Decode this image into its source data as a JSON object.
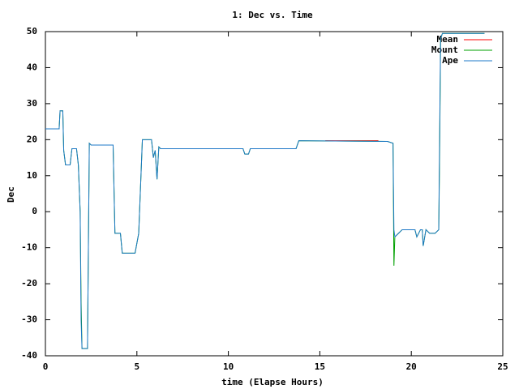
{
  "chart_data": {
    "type": "line",
    "title": "1: Dec vs. Time",
    "xlabel": "time (Elapse Hours)",
    "ylabel": "Dec",
    "xlim": [
      0,
      25
    ],
    "xticks": [
      0,
      5,
      10,
      15,
      20,
      25
    ],
    "ylim": [
      -40,
      50
    ],
    "yticks": [
      -40,
      -30,
      -20,
      -10,
      0,
      10,
      20,
      30,
      40,
      50
    ],
    "legend": "top-right",
    "grid": false,
    "series": [
      {
        "name": "Mean",
        "color": "#ff0000",
        "x": [
          15.3,
          18.2
        ],
        "values": [
          19.7,
          19.7
        ]
      },
      {
        "name": "Mount",
        "color": "#00a000",
        "x": [
          0,
          0.75,
          0.8,
          0.95,
          1.0,
          1.1,
          1.35,
          1.45,
          1.7,
          1.8,
          1.9,
          1.95,
          2.0,
          2.3,
          2.4,
          2.5,
          3.7,
          3.8,
          4.1,
          4.2,
          4.9,
          5.1,
          5.3,
          5.8,
          5.9,
          6.0,
          6.1,
          6.2,
          6.3,
          10.8,
          10.9,
          11.1,
          11.2,
          13.7,
          13.85,
          18.7,
          19.0,
          19.05,
          19.1,
          19.3,
          19.5,
          20.2,
          20.3,
          20.5,
          20.6,
          20.65,
          20.8,
          21.0,
          21.3,
          21.5,
          21.55,
          21.6,
          21.7,
          24
        ],
        "values": [
          23,
          23,
          28,
          28,
          17,
          13,
          13,
          17.5,
          17.5,
          13,
          0,
          -25,
          -38,
          -38,
          19,
          18.5,
          18.5,
          -6,
          -6,
          -11.5,
          -11.5,
          -6,
          20,
          20,
          15,
          17,
          9,
          18,
          17.5,
          17.5,
          16,
          16,
          17.5,
          17.5,
          19.7,
          19.5,
          19,
          -15,
          -7,
          -6,
          -5,
          -5,
          -7,
          -5,
          -5,
          -9.5,
          -5,
          -6,
          -6,
          -5,
          17,
          48,
          49.5,
          49.5
        ]
      },
      {
        "name": "Ape",
        "color": "#1e78c8",
        "x": [
          0,
          0.75,
          0.8,
          0.95,
          1.0,
          1.1,
          1.35,
          1.45,
          1.7,
          1.8,
          1.9,
          1.95,
          2.0,
          2.3,
          2.4,
          2.5,
          3.7,
          3.8,
          4.1,
          4.2,
          4.9,
          5.1,
          5.3,
          5.8,
          5.9,
          6.0,
          6.1,
          6.2,
          6.3,
          10.8,
          10.9,
          11.1,
          11.2,
          13.7,
          13.85,
          18.7,
          19.0,
          19.05,
          19.1,
          19.3,
          19.5,
          20.2,
          20.3,
          20.5,
          20.6,
          20.65,
          20.8,
          21.0,
          21.3,
          21.5,
          21.6,
          21.7,
          24
        ],
        "values": [
          23,
          23,
          28,
          28,
          17,
          13,
          13,
          17.5,
          17.5,
          13,
          0,
          -30,
          -38,
          -38,
          19,
          18.5,
          18.5,
          -6,
          -6,
          -11.5,
          -11.5,
          -6,
          20,
          20,
          15,
          17,
          9,
          18,
          17.5,
          17.5,
          16,
          16,
          17.5,
          17.5,
          19.7,
          19.5,
          19,
          -5,
          -7,
          -6,
          -5,
          -5,
          -7,
          -5,
          -5,
          -9.5,
          -5,
          -6,
          -6,
          -5,
          48,
          49.5,
          49.5
        ]
      }
    ]
  }
}
